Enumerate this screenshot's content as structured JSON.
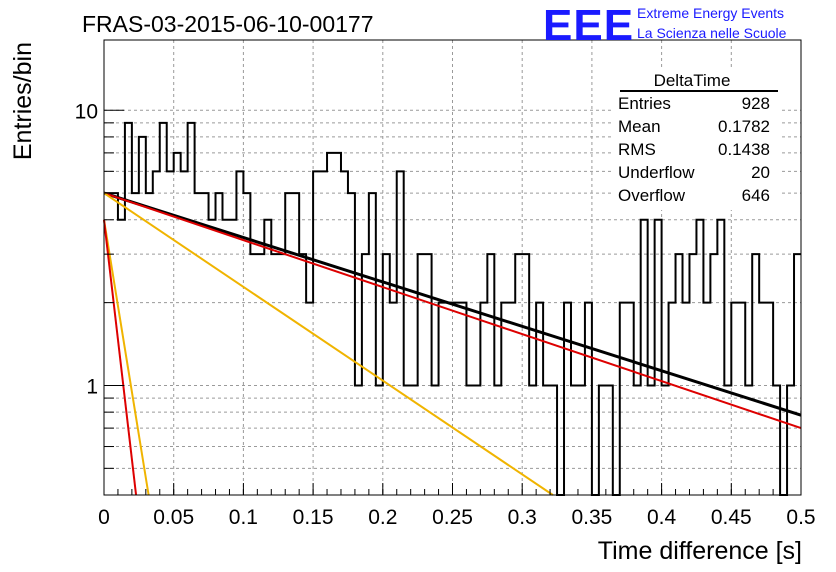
{
  "title": "FRAS-03-2015-06-10-00177",
  "logo": {
    "letters": "EEE",
    "line1": "Extreme Energy Events",
    "line2": "La Scienza nelle Scuole",
    "color": "#1a1aff"
  },
  "stats_box": {
    "title": "DeltaTime",
    "rows": [
      {
        "label": "Entries",
        "value": "928"
      },
      {
        "label": "Mean",
        "value": "0.1782"
      },
      {
        "label": "RMS",
        "value": "0.1438"
      },
      {
        "label": "Underflow",
        "value": "20"
      },
      {
        "label": "Overflow",
        "value": "646"
      }
    ]
  },
  "chart_data": {
    "type": "line",
    "title": "FRAS-03-2015-06-10-00177",
    "xlabel": "Time difference [s]",
    "ylabel": "Entries/bin",
    "xlim": [
      0,
      0.5
    ],
    "ylim": [
      0.4,
      18
    ],
    "y_scale": "log",
    "grid": true,
    "x_ticks": [
      "0",
      "0.05",
      "0.1",
      "0.15",
      "0.2",
      "0.25",
      "0.3",
      "0.35",
      "0.4",
      "0.45",
      "0.5"
    ],
    "y_ticks": [
      "1",
      "10"
    ],
    "histogram": {
      "bin_width": 0.005,
      "color": "#000000",
      "values": [
        5,
        5,
        4,
        9,
        5,
        8,
        5,
        6,
        9,
        6,
        7,
        6,
        9,
        5,
        5,
        4,
        5,
        4,
        4,
        6,
        5,
        3,
        3,
        4,
        3,
        3,
        5,
        5,
        3,
        2,
        6,
        6,
        7,
        7,
        6,
        5,
        1,
        3,
        5,
        1,
        3,
        2,
        6,
        1,
        1,
        3,
        3,
        1,
        2,
        2,
        2,
        2,
        1,
        1,
        2,
        3,
        1,
        2,
        2,
        3,
        3,
        1,
        2,
        1,
        1,
        0.4,
        2,
        1,
        1,
        2,
        0.4,
        1,
        1,
        0.4,
        2,
        2,
        1,
        4,
        1,
        4,
        1,
        2,
        3,
        2,
        3,
        4,
        2,
        3,
        4,
        1,
        2,
        2,
        1,
        3,
        2,
        2,
        1,
        0.4,
        1,
        3
      ]
    },
    "series": [
      {
        "color": "#000000",
        "points": [
          [
            0,
            5.0
          ],
          [
            0.5,
            0.78
          ]
        ]
      },
      {
        "color": "#dd0000",
        "points": [
          [
            0,
            5.0
          ],
          [
            0.5,
            0.7
          ]
        ]
      },
      {
        "color": "#f0b400",
        "points": [
          [
            0,
            5.0
          ],
          [
            0.322,
            0.4
          ]
        ]
      },
      {
        "color": "#f0b400",
        "points": [
          [
            0,
            4.0
          ],
          [
            0.032,
            0.4
          ]
        ]
      },
      {
        "color": "#dd0000",
        "points": [
          [
            0,
            4.0
          ],
          [
            0.023,
            0.4
          ]
        ]
      }
    ]
  }
}
